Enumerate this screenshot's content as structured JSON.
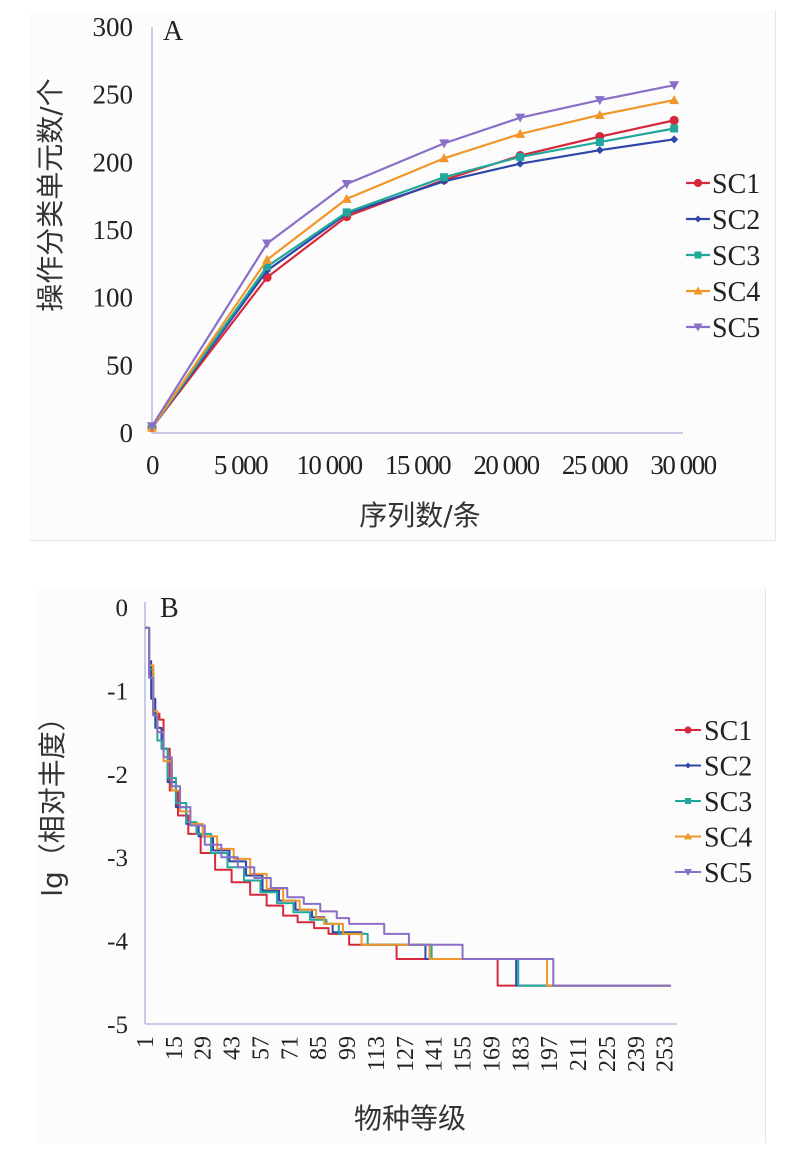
{
  "chart_data": [
    {
      "type": "line",
      "panel_label": "A",
      "title": "",
      "xlabel": "序列数/条",
      "ylabel": "操作分类单元数/个",
      "xlim": [
        0,
        30000
      ],
      "ylim": [
        0,
        300
      ],
      "x_ticks": [
        0,
        5000,
        10000,
        15000,
        20000,
        25000,
        30000
      ],
      "x_tick_labels": [
        "0",
        "5 000",
        "10 000",
        "15 000",
        "20 000",
        "25 000",
        "30 000"
      ],
      "y_ticks": [
        0,
        50,
        100,
        150,
        200,
        250,
        300
      ],
      "y_tick_labels": [
        "0",
        "50",
        "100",
        "150",
        "200",
        "250",
        "300"
      ],
      "grid": false,
      "legend_position": "right",
      "x": [
        0,
        6500,
        11000,
        16500,
        20800,
        25300,
        29500
      ],
      "series": [
        {
          "name": "SC1",
          "color": "#d62a3c",
          "marker": "circle",
          "values": [
            4,
            115,
            160,
            187,
            205,
            219,
            231
          ]
        },
        {
          "name": "SC2",
          "color": "#2e47a8",
          "marker": "diamond",
          "values": [
            4,
            120,
            162,
            186,
            199,
            209,
            217
          ]
        },
        {
          "name": "SC3",
          "color": "#22a89a",
          "marker": "square",
          "values": [
            4,
            123,
            163,
            189,
            204,
            215,
            225
          ]
        },
        {
          "name": "SC4",
          "color": "#f0962a",
          "marker": "triangle-up",
          "values": [
            4,
            128,
            173,
            203,
            221,
            235,
            246
          ]
        },
        {
          "name": "SC5",
          "color": "#8a6fc7",
          "marker": "triangle-down",
          "values": [
            5,
            140,
            184,
            214,
            233,
            246,
            257
          ]
        }
      ]
    },
    {
      "type": "line",
      "panel_label": "B",
      "title": "",
      "xlabel": "物种等级",
      "ylabel": "lg（相对丰度）",
      "xlim": [
        1,
        259
      ],
      "ylim": [
        -5,
        0
      ],
      "x_ticks": [
        1,
        15,
        29,
        43,
        57,
        71,
        85,
        99,
        113,
        127,
        141,
        155,
        169,
        183,
        197,
        211,
        225,
        239,
        253
      ],
      "x_tick_labels": [
        "1",
        "15",
        "29",
        "43",
        "57",
        "71",
        "85",
        "99",
        "113",
        "127",
        "141",
        "155",
        "169",
        "183",
        "197",
        "211",
        "225",
        "239",
        "253"
      ],
      "y_ticks": [
        0,
        -1,
        -2,
        -3,
        -4,
        -5
      ],
      "y_tick_labels": [
        "0",
        "-1",
        "-2",
        "-3",
        "-4",
        "-5"
      ],
      "grid": false,
      "legend_position": "right",
      "series": [
        {
          "name": "SC1",
          "color": "#d62a3c",
          "points": [
            [
              1,
              -0.25
            ],
            [
              3,
              -0.8
            ],
            [
              5,
              -1.28
            ],
            [
              8,
              -1.35
            ],
            [
              10,
              -1.7
            ],
            [
              13,
              -2.2
            ],
            [
              17,
              -2.5
            ],
            [
              22,
              -2.72
            ],
            [
              28,
              -2.95
            ],
            [
              35,
              -3.15
            ],
            [
              43,
              -3.3
            ],
            [
              52,
              -3.45
            ],
            [
              60,
              -3.58
            ],
            [
              68,
              -3.7
            ],
            [
              75,
              -3.78
            ],
            [
              83,
              -3.85
            ],
            [
              90,
              -3.92
            ],
            [
              99,
              -3.92
            ],
            [
              100,
              -4.05
            ],
            [
              122,
              -4.05
            ],
            [
              123,
              -4.22
            ],
            [
              171,
              -4.22
            ],
            [
              172,
              -4.54
            ],
            [
              256,
              -4.54
            ]
          ]
        },
        {
          "name": "SC2",
          "color": "#2e47a8",
          "points": [
            [
              1,
              -0.25
            ],
            [
              3,
              -0.65
            ],
            [
              4,
              -1.1
            ],
            [
              6,
              -1.45
            ],
            [
              9,
              -1.7
            ],
            [
              12,
              -2.1
            ],
            [
              16,
              -2.4
            ],
            [
              21,
              -2.6
            ],
            [
              27,
              -2.75
            ],
            [
              34,
              -2.92
            ],
            [
              42,
              -3.05
            ],
            [
              50,
              -3.22
            ],
            [
              58,
              -3.4
            ],
            [
              66,
              -3.52
            ],
            [
              74,
              -3.63
            ],
            [
              82,
              -3.72
            ],
            [
              88,
              -3.8
            ],
            [
              92,
              -3.9
            ],
            [
              105,
              -3.9
            ],
            [
              106,
              -4.05
            ],
            [
              136,
              -4.05
            ],
            [
              137,
              -4.22
            ],
            [
              180,
              -4.22
            ],
            [
              181,
              -4.54
            ],
            [
              256,
              -4.54
            ]
          ]
        },
        {
          "name": "SC3",
          "color": "#22a89a",
          "points": [
            [
              1,
              -0.25
            ],
            [
              3,
              -0.75
            ],
            [
              5,
              -1.3
            ],
            [
              7,
              -1.6
            ],
            [
              9,
              -1.7
            ],
            [
              12,
              -2.05
            ],
            [
              16,
              -2.35
            ],
            [
              21,
              -2.58
            ],
            [
              26,
              -2.72
            ],
            [
              33,
              -2.95
            ],
            [
              41,
              -3.12
            ],
            [
              49,
              -3.28
            ],
            [
              57,
              -3.42
            ],
            [
              65,
              -3.55
            ],
            [
              73,
              -3.66
            ],
            [
              81,
              -3.75
            ],
            [
              89,
              -3.8
            ],
            [
              95,
              -3.92
            ],
            [
              108,
              -3.92
            ],
            [
              109,
              -4.05
            ],
            [
              139,
              -4.05
            ],
            [
              140,
              -4.22
            ],
            [
              181,
              -4.22
            ],
            [
              182,
              -4.54
            ],
            [
              256,
              -4.54
            ]
          ]
        },
        {
          "name": "SC4",
          "color": "#f0962a",
          "points": [
            [
              1,
              -0.25
            ],
            [
              3,
              -0.7
            ],
            [
              5,
              -1.25
            ],
            [
              7,
              -1.5
            ],
            [
              10,
              -1.85
            ],
            [
              14,
              -2.2
            ],
            [
              18,
              -2.45
            ],
            [
              23,
              -2.6
            ],
            [
              29,
              -2.75
            ],
            [
              36,
              -2.9
            ],
            [
              44,
              -3.02
            ],
            [
              52,
              -3.2
            ],
            [
              60,
              -3.38
            ],
            [
              68,
              -3.52
            ],
            [
              76,
              -3.63
            ],
            [
              84,
              -3.73
            ],
            [
              88,
              -3.8
            ],
            [
              97,
              -3.92
            ],
            [
              105,
              -3.92
            ],
            [
              106,
              -4.05
            ],
            [
              138,
              -4.05
            ],
            [
              139,
              -4.22
            ],
            [
              195,
              -4.22
            ],
            [
              196,
              -4.54
            ],
            [
              256,
              -4.54
            ]
          ]
        },
        {
          "name": "SC5",
          "color": "#8a6fc7",
          "points": [
            [
              1,
              -0.25
            ],
            [
              3,
              -0.85
            ],
            [
              5,
              -1.3
            ],
            [
              7,
              -1.5
            ],
            [
              10,
              -1.8
            ],
            [
              14,
              -2.15
            ],
            [
              18,
              -2.4
            ],
            [
              23,
              -2.62
            ],
            [
              30,
              -2.85
            ],
            [
              38,
              -3.0
            ],
            [
              46,
              -3.12
            ],
            [
              54,
              -3.25
            ],
            [
              62,
              -3.37
            ],
            [
              70,
              -3.48
            ],
            [
              78,
              -3.56
            ],
            [
              86,
              -3.65
            ],
            [
              94,
              -3.73
            ],
            [
              100,
              -3.8
            ],
            [
              113,
              -3.8
            ],
            [
              117,
              -3.92
            ],
            [
              127,
              -3.92
            ],
            [
              129,
              -4.05
            ],
            [
              154,
              -4.05
            ],
            [
              155,
              -4.22
            ],
            [
              198,
              -4.22
            ],
            [
              199,
              -4.54
            ],
            [
              256,
              -4.54
            ]
          ]
        }
      ]
    }
  ]
}
